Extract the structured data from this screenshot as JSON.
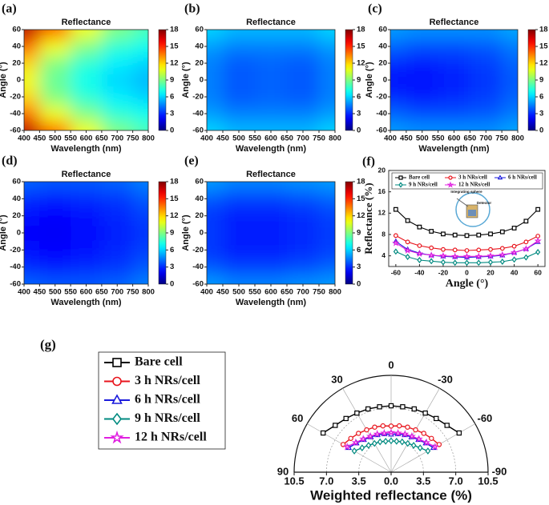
{
  "chart_data": [
    {
      "type": "heatmap",
      "panel": "(a)",
      "title": "Reflectance",
      "x_label": "Wavelength (nm)",
      "y_label": "Angle (°)",
      "x": [
        400,
        500,
        600,
        700,
        800
      ],
      "y": [
        -60,
        -40,
        -20,
        0,
        20,
        40,
        60
      ],
      "z": [
        [
          17,
          14,
          11,
          9,
          8
        ],
        [
          14,
          11,
          9,
          7.5,
          7
        ],
        [
          12,
          9,
          7.5,
          6.5,
          6
        ],
        [
          11,
          8.5,
          7,
          6,
          5.5
        ],
        [
          12,
          9,
          7.5,
          6.5,
          6
        ],
        [
          14,
          11,
          9,
          7.5,
          7
        ],
        [
          17,
          14,
          11,
          9,
          8
        ]
      ],
      "xlim": [
        400,
        800
      ],
      "ylim": [
        -60,
        60
      ],
      "xticks": [
        400,
        450,
        500,
        550,
        600,
        650,
        700,
        750,
        800
      ],
      "yticks": [
        -60,
        -40,
        -20,
        0,
        20,
        40,
        60
      ],
      "colormap": "jet",
      "clim": [
        0,
        18
      ],
      "cticks": [
        0,
        3,
        6,
        9,
        12,
        15,
        18
      ]
    },
    {
      "type": "heatmap",
      "panel": "(b)",
      "title": "Reflectance",
      "x_label": "Wavelength (nm)",
      "y_label": "Angle (°)",
      "x": [
        400,
        500,
        600,
        700,
        800
      ],
      "y": [
        -60,
        -40,
        -20,
        0,
        20,
        40,
        60
      ],
      "z": [
        [
          6,
          5.5,
          5.5,
          5.5,
          6
        ],
        [
          5,
          4.5,
          4.5,
          4.5,
          5
        ],
        [
          4.5,
          3.8,
          4,
          3.8,
          4.5
        ],
        [
          4.5,
          3.8,
          4,
          3.8,
          4.5
        ],
        [
          4.5,
          3.8,
          4,
          3.8,
          4.5
        ],
        [
          5,
          4.5,
          4.5,
          4.5,
          5
        ],
        [
          6,
          5.5,
          5.5,
          5.5,
          6
        ]
      ],
      "xlim": [
        400,
        800
      ],
      "ylim": [
        -60,
        60
      ],
      "xticks": [
        400,
        450,
        500,
        550,
        600,
        650,
        700,
        750,
        800
      ],
      "yticks": [
        -60,
        -40,
        -20,
        0,
        20,
        40,
        60
      ],
      "colormap": "jet",
      "clim": [
        0,
        18
      ],
      "cticks": [
        0,
        3,
        6,
        9,
        12,
        15,
        18
      ]
    },
    {
      "type": "heatmap",
      "panel": "(c)",
      "title": "Reflectance",
      "x_label": "Wavelength (nm)",
      "y_label": "Angle (°)",
      "x": [
        400,
        500,
        600,
        700,
        800
      ],
      "y": [
        -60,
        -40,
        -20,
        0,
        20,
        40,
        60
      ],
      "z": [
        [
          5,
          4.8,
          4.8,
          4.8,
          5.2
        ],
        [
          4,
          3.6,
          3.6,
          3.8,
          4.4
        ],
        [
          3,
          2.8,
          3,
          3.3,
          4
        ],
        [
          2.5,
          2.4,
          2.7,
          3.2,
          3.8
        ],
        [
          3,
          2.8,
          3,
          3.3,
          4
        ],
        [
          4,
          3.6,
          3.6,
          3.8,
          4.4
        ],
        [
          5,
          4.8,
          4.8,
          4.8,
          5.2
        ]
      ],
      "xlim": [
        400,
        800
      ],
      "ylim": [
        -60,
        60
      ],
      "xticks": [
        400,
        450,
        500,
        550,
        600,
        650,
        700,
        750,
        800
      ],
      "yticks": [
        -60,
        -40,
        -20,
        0,
        20,
        40,
        60
      ],
      "colormap": "jet",
      "clim": [
        0,
        18
      ],
      "cticks": [
        0,
        3,
        6,
        9,
        12,
        15,
        18
      ]
    },
    {
      "type": "heatmap",
      "panel": "(d)",
      "title": "Reflectance",
      "x_label": "Wavelength (nm)",
      "y_label": "Angle (°)",
      "x": [
        400,
        500,
        600,
        700,
        800
      ],
      "y": [
        -60,
        -40,
        -20,
        0,
        20,
        40,
        60
      ],
      "z": [
        [
          4,
          3.8,
          3.8,
          4,
          4.5
        ],
        [
          3,
          2.8,
          3,
          3.2,
          3.8
        ],
        [
          2.4,
          2.3,
          2.5,
          2.9,
          3.4
        ],
        [
          2.2,
          2.1,
          2.4,
          2.8,
          3.2
        ],
        [
          2.4,
          2.3,
          2.5,
          2.9,
          3.4
        ],
        [
          3,
          2.8,
          3,
          3.2,
          3.8
        ],
        [
          4,
          3.8,
          3.8,
          4,
          4.5
        ]
      ],
      "xlim": [
        400,
        800
      ],
      "ylim": [
        -60,
        60
      ],
      "xticks": [
        400,
        450,
        500,
        550,
        600,
        650,
        700,
        750,
        800
      ],
      "yticks": [
        -60,
        -40,
        -20,
        0,
        20,
        40,
        60
      ],
      "colormap": "jet",
      "clim": [
        0,
        18
      ],
      "cticks": [
        0,
        3,
        6,
        9,
        12,
        15,
        18
      ]
    },
    {
      "type": "heatmap",
      "panel": "(e)",
      "title": "Reflectance",
      "x_label": "Wavelength (nm)",
      "y_label": "Angle (°)",
      "x": [
        400,
        500,
        600,
        700,
        800
      ],
      "y": [
        -60,
        -40,
        -20,
        0,
        20,
        40,
        60
      ],
      "z": [
        [
          5,
          4.6,
          4.6,
          4.8,
          5
        ],
        [
          3.8,
          3.4,
          3.4,
          3.6,
          4
        ],
        [
          3.2,
          2.8,
          2.8,
          3,
          3.4
        ],
        [
          3.3,
          2.8,
          2.8,
          3,
          3.3
        ],
        [
          3.2,
          2.8,
          2.8,
          3,
          3.4
        ],
        [
          3.8,
          3.4,
          3.4,
          3.6,
          4
        ],
        [
          5,
          4.6,
          4.6,
          4.8,
          5
        ]
      ],
      "xlim": [
        400,
        800
      ],
      "ylim": [
        -60,
        60
      ],
      "xticks": [
        400,
        450,
        500,
        550,
        600,
        650,
        700,
        750,
        800
      ],
      "yticks": [
        -60,
        -40,
        -20,
        0,
        20,
        40,
        60
      ],
      "colormap": "jet",
      "clim": [
        0,
        18
      ],
      "cticks": [
        0,
        3,
        6,
        9,
        12,
        15,
        18
      ]
    },
    {
      "type": "line",
      "panel": "(f)",
      "x_label": "Angle (°)",
      "y_label": "Reflectance (%)",
      "annotations": [
        "Integrating sphere",
        "Detector"
      ],
      "x": [
        -60,
        -50,
        -40,
        -30,
        -20,
        -10,
        0,
        10,
        20,
        30,
        40,
        50,
        60
      ],
      "series": [
        {
          "name": "Bare cell",
          "color": "#000000",
          "marker": "square",
          "values": [
            12.7,
            10.6,
            9.4,
            8.6,
            8.1,
            7.9,
            7.8,
            7.9,
            8.1,
            8.5,
            9.2,
            10.5,
            12.7
          ]
        },
        {
          "name": "3 h NRs/cell",
          "color": "#e8141c",
          "marker": "circle",
          "values": [
            7.8,
            6.6,
            5.9,
            5.5,
            5.2,
            5.1,
            5.0,
            5.1,
            5.2,
            5.4,
            5.8,
            6.6,
            7.7
          ]
        },
        {
          "name": "6 h NRs/cell",
          "color": "#1a1adc",
          "marker": "triangle",
          "values": [
            6.7,
            5.2,
            4.5,
            4.1,
            3.9,
            3.8,
            3.7,
            3.8,
            3.9,
            4.1,
            4.6,
            5.3,
            6.6
          ]
        },
        {
          "name": "9 h NRs/cell",
          "color": "#008a80",
          "marker": "diamond",
          "values": [
            4.8,
            3.8,
            3.2,
            3.0,
            2.8,
            2.7,
            2.7,
            2.7,
            2.8,
            2.9,
            3.3,
            3.7,
            4.7
          ]
        },
        {
          "name": "12 h NRs/cell",
          "color": "#e020e0",
          "marker": "star",
          "values": [
            6.4,
            5.0,
            4.4,
            4.1,
            4.0,
            3.9,
            3.9,
            3.9,
            4.0,
            4.2,
            4.6,
            5.3,
            6.8
          ]
        }
      ],
      "xlim": [
        -66,
        66
      ],
      "ylim": [
        2,
        20
      ],
      "xticks": [
        -60,
        -40,
        -20,
        0,
        20,
        40,
        60
      ],
      "yticks": [
        4,
        8,
        12,
        16,
        20
      ],
      "legend": "top"
    },
    {
      "type": "polar",
      "panel": "(g)",
      "x_label": "Weighted reflectance (%)",
      "theta": [
        -60,
        -50,
        -40,
        -30,
        -20,
        -10,
        0,
        10,
        20,
        30,
        40,
        50,
        60
      ],
      "series": [
        {
          "name": "Bare cell",
          "color": "#000000",
          "marker": "square",
          "values": [
            8.5,
            7.9,
            7.6,
            7.4,
            7.3,
            7.2,
            7.2,
            7.2,
            7.3,
            7.4,
            7.6,
            7.9,
            8.5
          ]
        },
        {
          "name": "3 h NRs/cell",
          "color": "#e8141c",
          "marker": "circle",
          "values": [
            6.0,
            5.7,
            5.5,
            5.3,
            5.2,
            5.1,
            5.0,
            5.1,
            5.2,
            5.3,
            5.5,
            5.7,
            6.0
          ]
        },
        {
          "name": "6 h NRs/cell",
          "color": "#1a1adc",
          "marker": "triangle",
          "values": [
            5.3,
            4.9,
            4.6,
            4.4,
            4.3,
            4.2,
            4.1,
            4.2,
            4.3,
            4.4,
            4.6,
            4.9,
            5.3
          ]
        },
        {
          "name": "9 h NRs/cell",
          "color": "#008a80",
          "marker": "diamond",
          "values": [
            4.6,
            4.1,
            3.8,
            3.6,
            3.5,
            3.4,
            3.4,
            3.4,
            3.5,
            3.6,
            3.8,
            4.1,
            4.6
          ]
        },
        {
          "name": "12 h NRs/cell",
          "color": "#e020e0",
          "marker": "star",
          "values": [
            5.5,
            5.0,
            4.7,
            4.5,
            4.4,
            4.3,
            4.3,
            4.3,
            4.4,
            4.5,
            4.7,
            5.0,
            5.5
          ]
        }
      ],
      "rlim": [
        0,
        10.5
      ],
      "rticks": [
        {
          "value": 0,
          "label": "0.0"
        },
        3.5,
        {
          "value": 7,
          "label": "7.0"
        },
        10.5
      ],
      "thetaticks": [
        0,
        30,
        60,
        90,
        -30,
        -60,
        -90
      ],
      "legend": "outside-left"
    }
  ]
}
